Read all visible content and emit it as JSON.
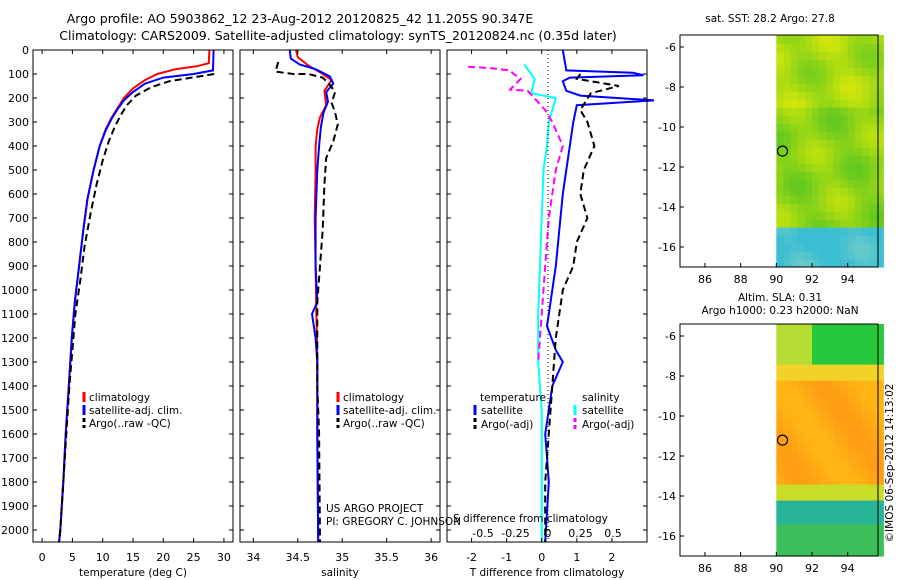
{
  "header": {
    "line1": "Argo profile: AO 5903862_12 23-Aug-2012 20120825_42 11.205S 90.347E",
    "line2": "Climatology: CARS2009. Satellite-adjusted climatology: synTS_20120824.nc (0.35d later)"
  },
  "side_stamp": "©IMOS 06-Sep-2012 14:13:02",
  "project": {
    "line1": "US ARGO PROJECT",
    "line2": "PI: GREGORY C. JOHNSON"
  },
  "colors": {
    "climatology": "#ff0000",
    "satellite": "#0000ff",
    "argo": "#000000",
    "cyan": "#00ffff",
    "magenta": "#ff00ff"
  },
  "depth_axis": {
    "ylim": [
      0,
      2050
    ],
    "ticks": [
      0,
      100,
      200,
      300,
      400,
      500,
      600,
      700,
      800,
      900,
      1000,
      1100,
      1200,
      1300,
      1400,
      1500,
      1600,
      1700,
      1800,
      1900,
      2000
    ]
  },
  "chart_data": [
    {
      "type": "line",
      "panel": "temperature",
      "xlabel": "temperature (deg C)",
      "xlim": [
        -1.5,
        31.5
      ],
      "xticks": [
        0,
        5,
        10,
        15,
        20,
        25,
        30
      ],
      "legend": [
        "climatology",
        "satellite-adj. clim.",
        "Argo(..raw -QC)"
      ],
      "series": [
        {
          "name": "climatology",
          "color": "#ff0000",
          "dash": "",
          "points": [
            [
              27.6,
              0
            ],
            [
              27.5,
              55
            ],
            [
              25.5,
              68
            ],
            [
              22,
              80
            ],
            [
              19,
              100
            ],
            [
              17,
              125
            ],
            [
              15,
              160
            ],
            [
              13.5,
              200
            ],
            [
              12.5,
              240
            ],
            [
              11.5,
              280
            ],
            [
              10.5,
              330
            ],
            [
              9.5,
              400
            ],
            [
              8.5,
              500
            ],
            [
              7.5,
              620
            ],
            [
              6.8,
              750
            ],
            [
              6.1,
              900
            ],
            [
              5.4,
              1050
            ],
            [
              4.9,
              1200
            ],
            [
              4.4,
              1400
            ],
            [
              3.9,
              1600
            ],
            [
              3.5,
              1800
            ],
            [
              3.0,
              2000
            ],
            [
              2.8,
              2050
            ]
          ]
        },
        {
          "name": "satellite-adj. clim.",
          "color": "#0000ff",
          "dash": "",
          "points": [
            [
              28.3,
              0
            ],
            [
              28.2,
              85
            ],
            [
              25,
              100
            ],
            [
              20,
              115
            ],
            [
              17,
              140
            ],
            [
              15,
              175
            ],
            [
              13.5,
              210
            ],
            [
              12.5,
              245
            ],
            [
              11.5,
              285
            ],
            [
              10.5,
              335
            ],
            [
              9.5,
              400
            ],
            [
              8.5,
              500
            ],
            [
              7.5,
              620
            ],
            [
              6.8,
              750
            ],
            [
              6.1,
              900
            ],
            [
              5.4,
              1050
            ],
            [
              4.9,
              1200
            ],
            [
              4.4,
              1400
            ],
            [
              3.9,
              1600
            ],
            [
              3.5,
              1800
            ],
            [
              3.0,
              2000
            ],
            [
              2.8,
              2050
            ]
          ]
        },
        {
          "name": "Argo(..raw -QC)",
          "color": "#000000",
          "dash": "7,4",
          "points": [
            [
              28.4,
              100
            ],
            [
              26,
              110
            ],
            [
              21,
              130
            ],
            [
              18,
              155
            ],
            [
              15.5,
              190
            ],
            [
              14,
              230
            ],
            [
              13,
              270
            ],
            [
              12,
              320
            ],
            [
              11,
              380
            ],
            [
              10,
              460
            ],
            [
              9,
              560
            ],
            [
              8,
              680
            ],
            [
              7,
              820
            ],
            [
              6.3,
              960
            ],
            [
              5.5,
              1100
            ],
            [
              5,
              1250
            ],
            [
              4.5,
              1400
            ],
            [
              4,
              1600
            ],
            [
              3.5,
              1800
            ],
            [
              3.0,
              2000
            ],
            [
              2.8,
              2050
            ]
          ]
        }
      ]
    },
    {
      "type": "line",
      "panel": "salinity",
      "xlabel": "salinity",
      "xlim": [
        33.85,
        36.1
      ],
      "xticks": [
        34,
        34.5,
        35,
        35.5,
        36
      ],
      "legend": [
        "climatology",
        "satellite-adj. clim.",
        "Argo(..raw -QC)"
      ],
      "series": [
        {
          "name": "climatology",
          "color": "#ff0000",
          "dash": "",
          "points": [
            [
              34.48,
              0
            ],
            [
              34.5,
              30
            ],
            [
              34.62,
              65
            ],
            [
              34.76,
              95
            ],
            [
              34.88,
              125
            ],
            [
              34.8,
              170
            ],
            [
              34.82,
              230
            ],
            [
              34.75,
              280
            ],
            [
              34.72,
              330
            ],
            [
              34.7,
              400
            ],
            [
              34.7,
              500
            ],
            [
              34.69,
              700
            ],
            [
              34.7,
              900
            ],
            [
              34.71,
              1100
            ],
            [
              34.72,
              1300
            ],
            [
              34.72,
              1600
            ],
            [
              34.73,
              2050
            ]
          ]
        },
        {
          "name": "satellite-adj. clim.",
          "color": "#0000ff",
          "dash": "",
          "points": [
            [
              34.41,
              0
            ],
            [
              34.42,
              35
            ],
            [
              34.52,
              60
            ],
            [
              34.7,
              80
            ],
            [
              34.86,
              110
            ],
            [
              34.9,
              140
            ],
            [
              34.82,
              175
            ],
            [
              34.84,
              215
            ],
            [
              34.79,
              260
            ],
            [
              34.76,
              320
            ],
            [
              34.74,
              400
            ],
            [
              34.72,
              500
            ],
            [
              34.7,
              700
            ],
            [
              34.7,
              900
            ],
            [
              34.72,
              1050
            ],
            [
              34.66,
              1100
            ],
            [
              34.7,
              1200
            ],
            [
              34.72,
              1300
            ],
            [
              34.72,
              1600
            ],
            [
              34.73,
              2050
            ]
          ]
        },
        {
          "name": "Argo(..raw -QC)",
          "color": "#000000",
          "dash": "7,4",
          "points": [
            [
              34.28,
              50
            ],
            [
              34.25,
              90
            ],
            [
              34.45,
              100
            ],
            [
              34.62,
              100
            ],
            [
              34.78,
              115
            ],
            [
              34.85,
              140
            ],
            [
              34.92,
              175
            ],
            [
              34.88,
              220
            ],
            [
              34.92,
              260
            ],
            [
              34.95,
              310
            ],
            [
              34.9,
              380
            ],
            [
              34.82,
              450
            ],
            [
              34.8,
              560
            ],
            [
              34.79,
              650
            ],
            [
              34.78,
              750
            ],
            [
              34.76,
              850
            ],
            [
              34.74,
              950
            ],
            [
              34.72,
              1050
            ],
            [
              34.72,
              1200
            ],
            [
              34.72,
              1400
            ],
            [
              34.74,
              1600
            ],
            [
              34.75,
              2050
            ]
          ]
        }
      ]
    },
    {
      "type": "line",
      "panel": "difference",
      "xlabel": "T difference from climatology",
      "xlabel_top": "S difference from climatology",
      "xlim": [
        -2.7,
        3.0
      ],
      "xticks": [
        -2,
        -1,
        0,
        1,
        2
      ],
      "xticks_s": [
        -0.5,
        -0.25,
        0,
        0.25,
        0.5
      ],
      "legend_t": {
        "header": "temperature",
        "items": [
          "satellite",
          "Argo(-adj)"
        ]
      },
      "legend_s": {
        "header": "salinity",
        "items": [
          "satellite",
          "Argo(-adj)"
        ]
      },
      "series": [
        {
          "name": "temperature satellite",
          "color": "#0000ff",
          "dash": "",
          "points": [
            [
              0.6,
              0
            ],
            [
              0.7,
              85
            ],
            [
              2.6,
              95
            ],
            [
              2.9,
              105
            ],
            [
              0.8,
              115
            ],
            [
              0.6,
              130
            ],
            [
              0.7,
              170
            ],
            [
              1.1,
              190
            ],
            [
              3.2,
              210
            ],
            [
              1.0,
              230
            ],
            [
              0.9,
              300
            ],
            [
              0.8,
              400
            ],
            [
              0.6,
              600
            ],
            [
              0.4,
              900
            ],
            [
              0.2,
              1100
            ],
            [
              0.15,
              1150
            ],
            [
              0.4,
              1250
            ],
            [
              0.6,
              1300
            ],
            [
              0.3,
              1400
            ],
            [
              0.1,
              1600
            ],
            [
              0.2,
              1800
            ],
            [
              0.1,
              2050
            ]
          ]
        },
        {
          "name": "temperature Argo(-adj)",
          "color": "#000000",
          "dash": "7,4",
          "points": [
            [
              1.1,
              100
            ],
            [
              1.0,
              120
            ],
            [
              2.2,
              150
            ],
            [
              1.4,
              180
            ],
            [
              1.1,
              250
            ],
            [
              1.3,
              300
            ],
            [
              1.5,
              400
            ],
            [
              1.2,
              500
            ],
            [
              1.1,
              600
            ],
            [
              1.3,
              700
            ],
            [
              1.0,
              800
            ],
            [
              0.9,
              900
            ],
            [
              0.6,
              1000
            ],
            [
              0.5,
              1100
            ],
            [
              0.4,
              1200
            ],
            [
              0.3,
              1400
            ],
            [
              0.2,
              1600
            ],
            [
              0.1,
              1800
            ],
            [
              0.1,
              2050
            ]
          ]
        },
        {
          "name": "salinity satellite",
          "color": "#00ffff",
          "dash": "",
          "points": [
            [
              -0.5,
              60
            ],
            [
              -0.2,
              120
            ],
            [
              -0.3,
              180
            ],
            [
              0.4,
              200
            ],
            [
              0.2,
              300
            ],
            [
              0.15,
              400
            ],
            [
              0.05,
              500
            ],
            [
              0.0,
              700
            ],
            [
              -0.05,
              900
            ],
            [
              -0.1,
              1100
            ],
            [
              -0.1,
              1300
            ],
            [
              0.0,
              1500
            ],
            [
              0.0,
              1800
            ],
            [
              0.0,
              2050
            ]
          ]
        },
        {
          "name": "salinity Argo(-adj)",
          "color": "#ff00ff",
          "dash": "7,4",
          "points": [
            [
              -2.1,
              70
            ],
            [
              -1.5,
              75
            ],
            [
              -0.9,
              85
            ],
            [
              -0.8,
              100
            ],
            [
              -0.6,
              120
            ],
            [
              -0.9,
              165
            ],
            [
              -0.4,
              170
            ],
            [
              0.1,
              250
            ],
            [
              0.3,
              300
            ],
            [
              0.6,
              400
            ],
            [
              0.4,
              500
            ],
            [
              0.2,
              700
            ],
            [
              0.1,
              900
            ],
            [
              0.0,
              1100
            ],
            [
              -0.1,
              1300
            ]
          ]
        }
      ]
    },
    {
      "type": "heatmap",
      "panel": "sst-map",
      "title": "sat. SST: 28.2 Argo: 27.8",
      "xlim": [
        84.6,
        95.7
      ],
      "ylim": [
        -17.0,
        -5.4
      ],
      "xticks": [
        86,
        88,
        90,
        92,
        94
      ],
      "yticks": [
        -6,
        -8,
        -10,
        -12,
        -14,
        -16
      ],
      "data_lon_min": 90.0,
      "marker": {
        "lon": 90.347,
        "lat": -11.205
      }
    },
    {
      "type": "heatmap",
      "panel": "sla-map",
      "title_line1": "Altim. SLA: 0.31",
      "title_line2": "Argo h1000: 0.23 h2000: NaN",
      "xlim": [
        84.6,
        95.7
      ],
      "ylim": [
        -17.0,
        -5.4
      ],
      "xticks": [
        86,
        88,
        90,
        92,
        94
      ],
      "yticks": [
        -6,
        -8,
        -10,
        -12,
        -14,
        -16
      ],
      "data_lon_min": 90.0,
      "marker": {
        "lon": 90.347,
        "lat": -11.205
      }
    }
  ]
}
